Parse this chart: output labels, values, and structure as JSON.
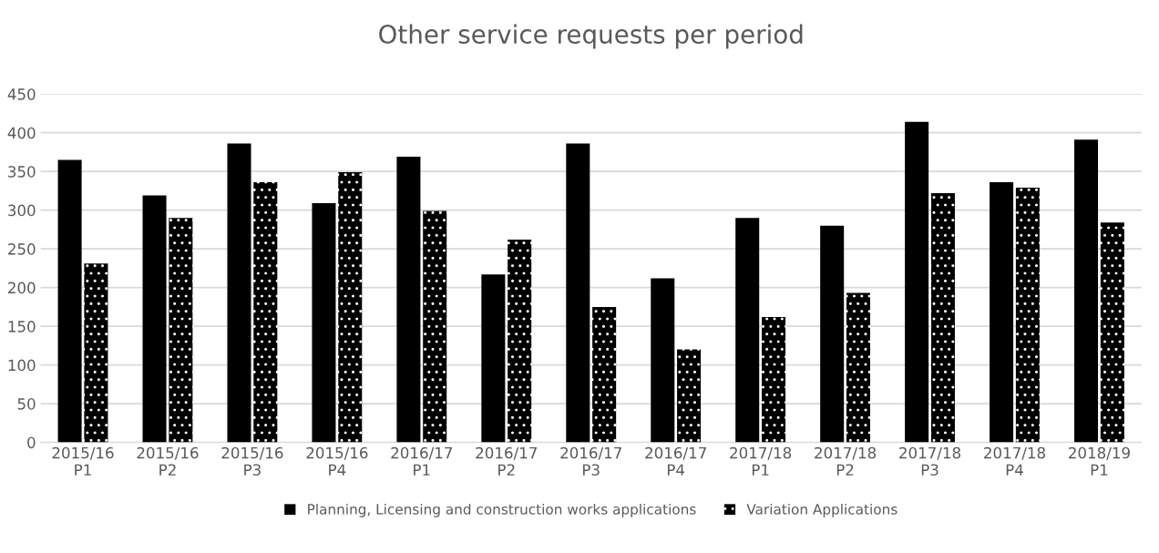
{
  "chart_data": {
    "type": "bar",
    "title": "Other service requests per period",
    "categories": [
      "2015/16 P1",
      "2015/16 P2",
      "2015/16 P3",
      "2015/16 P4",
      "2016/17 P1",
      "2016/17 P2",
      "2016/17 P3",
      "2016/17 P4",
      "2017/18 P1",
      "2017/18 P2",
      "2017/18 P3",
      "2017/18 P4",
      "2018/19 P1"
    ],
    "series": [
      {
        "name": "Planning, Licensing and construction works applications",
        "color": "#000000",
        "values": [
          365,
          319,
          386,
          309,
          369,
          217,
          386,
          212,
          290,
          280,
          414,
          336,
          391
        ]
      },
      {
        "name": "Variation Applications",
        "color": "#000000",
        "values": [
          231,
          290,
          336,
          349,
          299,
          262,
          175,
          120,
          162,
          193,
          322,
          329,
          284
        ]
      }
    ],
    "ylim": [
      0,
      450
    ],
    "yticks": [
      0,
      50,
      100,
      150,
      200,
      250,
      300,
      350,
      400,
      450
    ],
    "grid": "y",
    "legend": "bottom"
  }
}
